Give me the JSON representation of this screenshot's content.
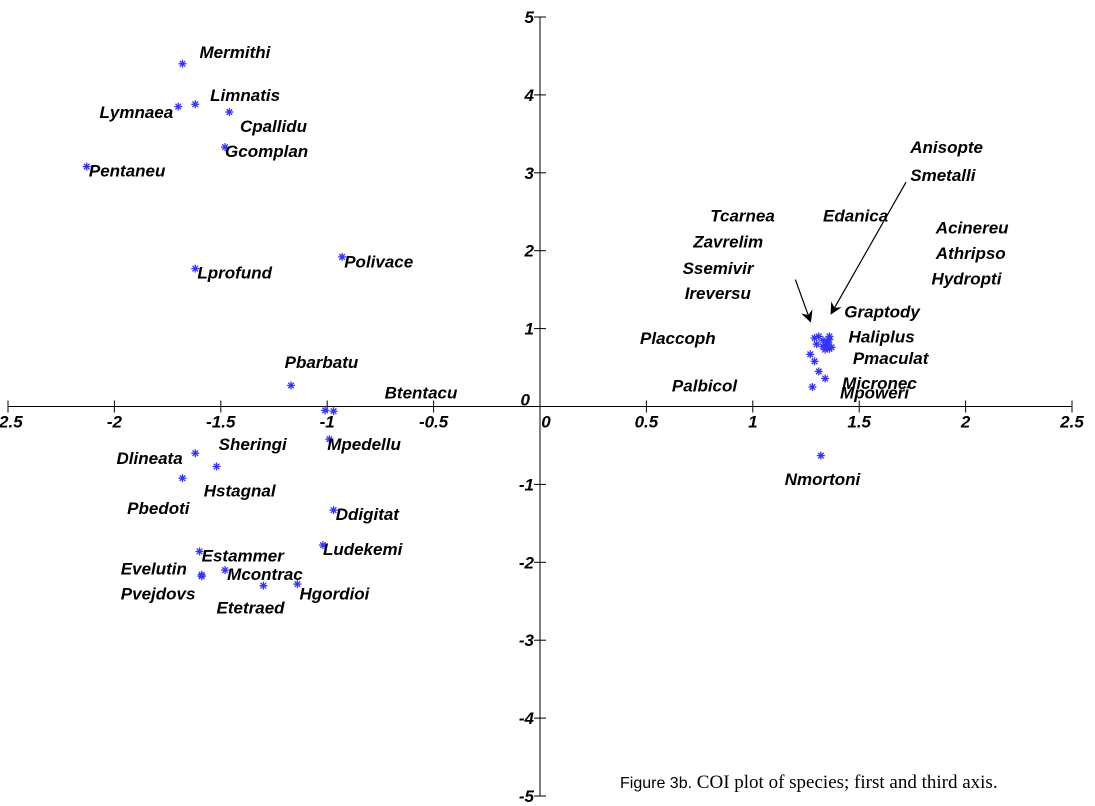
{
  "chart_data": {
    "type": "scatter",
    "title": "",
    "xlabel": "",
    "ylabel": "",
    "xlim": [
      -2.5,
      2.5
    ],
    "ylim": [
      -5,
      5
    ],
    "x_ticks": [
      "-2.5",
      "-2",
      "-1.5",
      "-1",
      "-0.5",
      "0",
      "0.5",
      "1",
      "1.5",
      "2",
      "2.5"
    ],
    "y_ticks": [
      "-5",
      "-4",
      "-3",
      "-2",
      "-1",
      "0",
      "1",
      "2",
      "3",
      "4",
      "5"
    ],
    "marker_color": "#3333ff",
    "points": [
      {
        "label": "Mermithi",
        "x": -1.68,
        "y": 4.4
      },
      {
        "label": "Lymnaea",
        "x": -1.7,
        "y": 3.85
      },
      {
        "label": "Limnatis",
        "x": -1.62,
        "y": 3.88
      },
      {
        "label": "Cpallidu",
        "x": -1.46,
        "y": 3.78
      },
      {
        "label": "Gcomplan",
        "x": -1.48,
        "y": 3.33
      },
      {
        "label": "Pentaneu",
        "x": -2.13,
        "y": 3.08
      },
      {
        "label": "Polivace",
        "x": -0.93,
        "y": 1.92
      },
      {
        "label": "Lprofund",
        "x": -1.62,
        "y": 1.77
      },
      {
        "label": "Pbarbatu",
        "x": -1.17,
        "y": 0.27
      },
      {
        "label": "Btentacu",
        "x": -0.97,
        "y": -0.06
      },
      {
        "label": "Sheringi",
        "x": -1.01,
        "y": -0.05
      },
      {
        "label": "Mpedellu",
        "x": -0.99,
        "y": -0.42
      },
      {
        "label": "Dlineata",
        "x": -1.62,
        "y": -0.6
      },
      {
        "label": "Hstagnal",
        "x": -1.52,
        "y": -0.77
      },
      {
        "label": "Pbedoti",
        "x": -1.68,
        "y": -0.92
      },
      {
        "label": "Ddigitat",
        "x": -0.97,
        "y": -1.33
      },
      {
        "label": "Ludekemi",
        "x": -1.02,
        "y": -1.78
      },
      {
        "label": "Estammer",
        "x": -1.6,
        "y": -1.86
      },
      {
        "label": "Mcontrac",
        "x": -1.48,
        "y": -2.1
      },
      {
        "label": "Evelutin",
        "x": -1.59,
        "y": -2.16
      },
      {
        "label": "Pvejdovs",
        "x": -1.59,
        "y": -2.18
      },
      {
        "label": "Hgordioi",
        "x": -1.14,
        "y": -2.28
      },
      {
        "label": "Etetraed",
        "x": -1.3,
        "y": -2.3
      },
      {
        "label": "Tcarnea",
        "x": 1.31,
        "y": 0.9
      },
      {
        "label": "Zavrelim",
        "x": 1.29,
        "y": 0.88
      },
      {
        "label": "Ssemivir",
        "x": 1.33,
        "y": 0.85
      },
      {
        "label": "Ireversu",
        "x": 1.3,
        "y": 0.8
      },
      {
        "label": "Anisopte",
        "x": 1.36,
        "y": 0.9
      },
      {
        "label": "Smetalli",
        "x": 1.35,
        "y": 0.82
      },
      {
        "label": "Edanica",
        "x": 1.37,
        "y": 0.76
      },
      {
        "label": "Acinereu",
        "x": 1.34,
        "y": 0.73
      },
      {
        "label": "Athripso",
        "x": 1.36,
        "y": 0.74
      },
      {
        "label": "Hydropti",
        "x": 1.33,
        "y": 0.77
      },
      {
        "label": "Graptody",
        "x": 1.35,
        "y": 0.8
      },
      {
        "label": "Haliplus",
        "x": 1.36,
        "y": 0.86
      },
      {
        "label": "Pmaculat",
        "x": 1.34,
        "y": 0.78
      },
      {
        "label": "Placcoph",
        "x": 1.27,
        "y": 0.67
      },
      {
        "label": "Micronec",
        "x": 1.29,
        "y": 0.58
      },
      {
        "label": "Palbicol",
        "x": 1.31,
        "y": 0.45
      },
      {
        "label": "Mpoweri",
        "x": 1.34,
        "y": 0.36
      },
      {
        "label": "Palbicol-2",
        "x": 1.28,
        "y": 0.25
      },
      {
        "label": "Nmortoni",
        "x": 1.32,
        "y": -0.63
      }
    ],
    "text_labels": [
      {
        "text": "Mermithi",
        "x": -1.6,
        "y": 4.55
      },
      {
        "text": "Lymnaea",
        "x": -2.07,
        "y": 3.78
      },
      {
        "text": "Limnatis",
        "x": -1.55,
        "y": 4.0
      },
      {
        "text": "Cpallidu",
        "x": -1.41,
        "y": 3.6
      },
      {
        "text": "Gcomplan",
        "x": -1.48,
        "y": 3.28
      },
      {
        "text": "Pentaneu",
        "x": -2.12,
        "y": 3.03
      },
      {
        "text": "Polivace",
        "x": -0.92,
        "y": 1.86
      },
      {
        "text": "Lprofund",
        "x": -1.61,
        "y": 1.72
      },
      {
        "text": "Pbarbatu",
        "x": -1.2,
        "y": 0.57
      },
      {
        "text": "Btentacu",
        "x": -0.73,
        "y": 0.18
      },
      {
        "text": "Sheringi",
        "x": -1.51,
        "y": -0.48
      },
      {
        "text": "Mpedellu",
        "x": -1.0,
        "y": -0.48
      },
      {
        "text": "Dlineata",
        "x": -1.99,
        "y": -0.66
      },
      {
        "text": "Hstagnal",
        "x": -1.58,
        "y": -1.08
      },
      {
        "text": "Pbedoti",
        "x": -1.94,
        "y": -1.3
      },
      {
        "text": "Ddigitat",
        "x": -0.96,
        "y": -1.38
      },
      {
        "text": "Ludekemi",
        "x": -1.02,
        "y": -1.83
      },
      {
        "text": "Estammer",
        "x": -1.59,
        "y": -1.91
      },
      {
        "text": "Evelutin",
        "x": -1.97,
        "y": -2.08
      },
      {
        "text": "Mcontrac",
        "x": -1.47,
        "y": -2.15
      },
      {
        "text": "Pvejdovs",
        "x": -1.97,
        "y": -2.4
      },
      {
        "text": "Hgordioi",
        "x": -1.13,
        "y": -2.4
      },
      {
        "text": "Etetraed",
        "x": -1.52,
        "y": -2.58
      },
      {
        "text": "Tcarnea",
        "x": 0.8,
        "y": 2.45
      },
      {
        "text": "Zavrelim",
        "x": 0.72,
        "y": 2.12
      },
      {
        "text": "Ssemivir",
        "x": 0.67,
        "y": 1.78
      },
      {
        "text": "Ireversu",
        "x": 0.68,
        "y": 1.46
      },
      {
        "text": "Anisopte",
        "x": 1.74,
        "y": 3.33
      },
      {
        "text": "Smetalli",
        "x": 1.74,
        "y": 2.97
      },
      {
        "text": "Edanica",
        "x": 1.33,
        "y": 2.45
      },
      {
        "text": "Acinereu",
        "x": 1.86,
        "y": 2.3
      },
      {
        "text": "Athripso",
        "x": 1.86,
        "y": 1.97
      },
      {
        "text": "Hydropti",
        "x": 1.84,
        "y": 1.64
      },
      {
        "text": "Graptody",
        "x": 1.43,
        "y": 1.22
      },
      {
        "text": "Haliplus",
        "x": 1.45,
        "y": 0.9
      },
      {
        "text": "Pmaculat",
        "x": 1.47,
        "y": 0.62
      },
      {
        "text": "Placcoph",
        "x": 0.47,
        "y": 0.88
      },
      {
        "text": "Micronec",
        "x": 1.42,
        "y": 0.3
      },
      {
        "text": "Palbicol",
        "x": 0.62,
        "y": 0.27
      },
      {
        "text": "Mpoweri",
        "x": 1.41,
        "y": 0.18
      },
      {
        "text": "Nmortoni",
        "x": 1.15,
        "y": -0.93
      }
    ],
    "arrows": [
      {
        "from": [
          1.2,
          1.63
        ],
        "to": [
          1.27,
          1.1
        ]
      },
      {
        "from": [
          1.72,
          2.88
        ],
        "to": [
          1.37,
          1.2
        ]
      }
    ],
    "grid": false,
    "legend": "none"
  },
  "caption": {
    "figure_label": "Figure 3b.",
    "text": " COI plot of species; first and third axis."
  }
}
